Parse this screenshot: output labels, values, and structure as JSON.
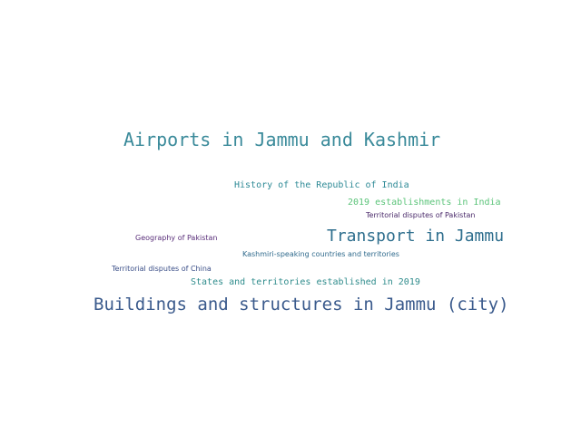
{
  "words": [
    {
      "text": "Airports in Jammu and Kashmir",
      "color": "#3a8a9a"
    },
    {
      "text": "History of the Republic of India",
      "color": "#2e8a96"
    },
    {
      "text": "2019 establishments in India",
      "color": "#5cc47a"
    },
    {
      "text": "Territorial disputes of Pakistan",
      "color": "#4a2a6a"
    },
    {
      "text": "Geography of Pakistan",
      "color": "#5a2f7a"
    },
    {
      "text": "Transport in Jammu",
      "color": "#2f6f8e"
    },
    {
      "text": "Kashmiri-speaking countries and territories",
      "color": "#2f6a8c"
    },
    {
      "text": "Territorial disputes of China",
      "color": "#3b4f88"
    },
    {
      "text": "States and territories established in 2019",
      "color": "#2f8c8c"
    },
    {
      "text": "Buildings and structures in Jammu (city)",
      "color": "#3a5a8c"
    }
  ]
}
